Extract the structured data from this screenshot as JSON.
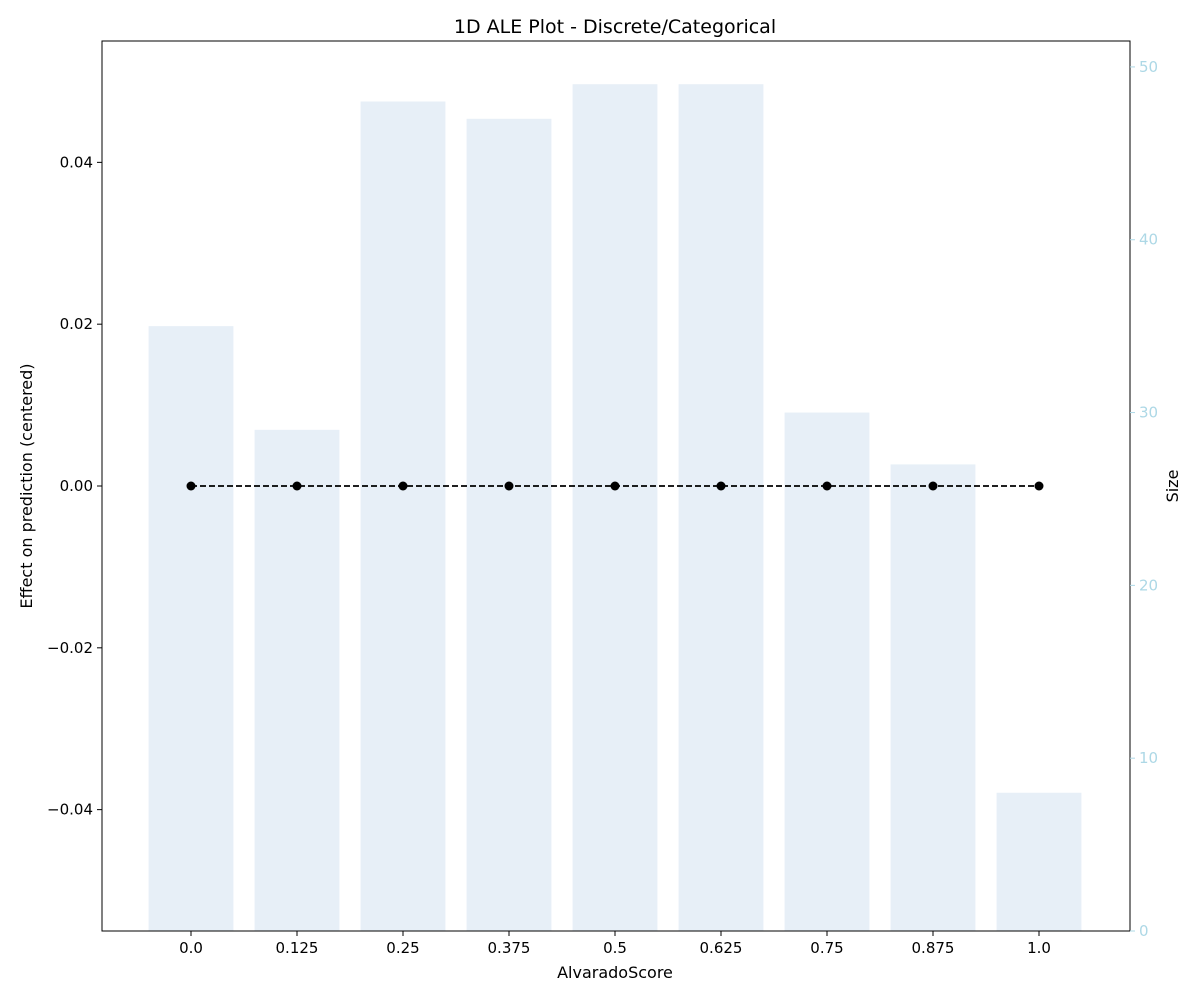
{
  "chart_data": {
    "type": "bar",
    "title": "1D ALE Plot - Discrete/Categorical",
    "xlabel": "AlvaradoScore",
    "ylabel": "Effect on prediction (centered)",
    "y2label": "Size",
    "categories": [
      "0.0",
      "0.125",
      "0.25",
      "0.375",
      "0.5",
      "0.625",
      "0.75",
      "0.875",
      "1.0"
    ],
    "ylim": [
      -0.055,
      0.055
    ],
    "y_ticks": [
      -0.04,
      -0.02,
      0.0,
      0.02,
      0.04
    ],
    "y_tick_labels": [
      "−0.04",
      "−0.02",
      "0.00",
      "0.02",
      "0.04"
    ],
    "y2lim": [
      0,
      51.5
    ],
    "y2_ticks": [
      0,
      10,
      20,
      30,
      40,
      50
    ],
    "y2_tick_labels": [
      "0",
      "10",
      "20",
      "30",
      "40",
      "50"
    ],
    "grid": false,
    "series": [
      {
        "kind": "bar",
        "axis": "right",
        "color": "#e7eff7",
        "values": [
          35,
          29,
          48,
          47,
          49,
          49,
          30,
          27,
          8
        ]
      },
      {
        "kind": "line",
        "axis": "left",
        "color": "#000000",
        "linestyle": "dashed",
        "marker": "circle",
        "values": [
          0,
          0,
          0,
          0,
          0,
          0,
          0,
          0,
          0
        ]
      }
    ],
    "colors": {
      "bars": "#e7eff7",
      "right_axis": "#add8e6",
      "line": "#000000"
    }
  }
}
